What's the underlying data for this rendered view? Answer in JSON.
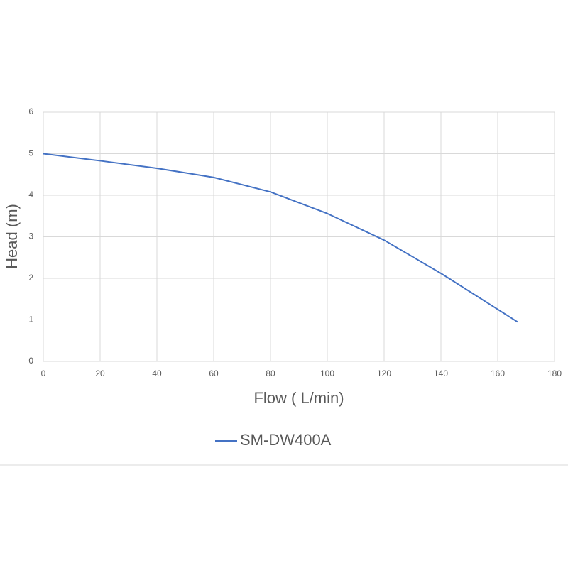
{
  "chart_data": {
    "type": "line",
    "x_label": "Flow ( L/min)",
    "y_label": "Head (m)",
    "x": [
      0,
      20,
      40,
      60,
      80,
      100,
      120,
      140,
      167
    ],
    "series": [
      {
        "name": "SM-DW400A",
        "color": "#4472c4",
        "values": [
          5.0,
          4.83,
          4.65,
          4.43,
          4.08,
          3.56,
          2.92,
          2.12,
          0.95
        ]
      }
    ],
    "xlim": [
      0,
      180
    ],
    "xticks": [
      0,
      20,
      40,
      60,
      80,
      100,
      120,
      140,
      160,
      180
    ],
    "ylim": [
      0,
      6
    ],
    "yticks": [
      0,
      1,
      2,
      3,
      4,
      5,
      6
    ],
    "grid": true,
    "legend": "bottom"
  }
}
